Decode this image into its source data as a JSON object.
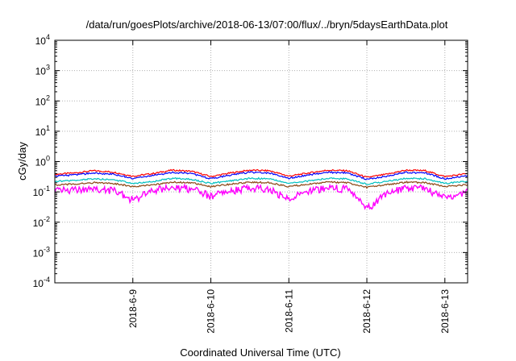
{
  "chart_data": {
    "type": "line",
    "title": "/data/run/goesPlots/archive/2018-06-13/07:00/flux/../bryn/5daysEarthData.plot",
    "xlabel": "Coordinated Universal Time (UTC)",
    "ylabel": "cGy/day",
    "yscale": "log",
    "ylim": [
      0.0001,
      10000
    ],
    "y_ticks": [
      {
        "base": "10",
        "exp": "-4",
        "value": 0.0001
      },
      {
        "base": "10",
        "exp": "-3",
        "value": 0.001
      },
      {
        "base": "10",
        "exp": "-2",
        "value": 0.01
      },
      {
        "base": "10",
        "exp": "-1",
        "value": 0.1
      },
      {
        "base": "10",
        "exp": "0",
        "value": 1
      },
      {
        "base": "10",
        "exp": "1",
        "value": 10
      },
      {
        "base": "10",
        "exp": "2",
        "value": 100
      },
      {
        "base": "10",
        "exp": "3",
        "value": 1000
      },
      {
        "base": "10",
        "exp": "4",
        "value": 10000
      }
    ],
    "xlim": [
      "2018-06-08 00:00",
      "2018-06-13 07:00"
    ],
    "x_ticks": [
      {
        "label": "2018-6-9",
        "date": "2018-06-09"
      },
      {
        "label": "2018-6-10",
        "date": "2018-06-10"
      },
      {
        "label": "2018-6-11",
        "date": "2018-06-11"
      },
      {
        "label": "2018-6-12",
        "date": "2018-06-12"
      },
      {
        "label": "2018-6-13",
        "date": "2018-06-13"
      }
    ],
    "grid": true,
    "x": [
      "2018-06-08 00:00",
      "2018-06-08 06:00",
      "2018-06-08 12:00",
      "2018-06-08 18:00",
      "2018-06-09 00:00",
      "2018-06-09 06:00",
      "2018-06-09 12:00",
      "2018-06-09 18:00",
      "2018-06-10 00:00",
      "2018-06-10 06:00",
      "2018-06-10 12:00",
      "2018-06-10 18:00",
      "2018-06-11 00:00",
      "2018-06-11 06:00",
      "2018-06-11 12:00",
      "2018-06-11 18:00",
      "2018-06-12 00:00",
      "2018-06-12 06:00",
      "2018-06-12 12:00",
      "2018-06-12 18:00",
      "2018-06-13 00:00",
      "2018-06-13 07:00"
    ],
    "series": [
      {
        "color": "#ff0000",
        "values": [
          0.38,
          0.42,
          0.5,
          0.45,
          0.33,
          0.4,
          0.52,
          0.48,
          0.32,
          0.42,
          0.52,
          0.5,
          0.33,
          0.42,
          0.52,
          0.5,
          0.3,
          0.38,
          0.52,
          0.5,
          0.32,
          0.4
        ]
      },
      {
        "color": "#0000ff",
        "values": [
          0.33,
          0.36,
          0.42,
          0.38,
          0.28,
          0.34,
          0.44,
          0.4,
          0.27,
          0.36,
          0.44,
          0.42,
          0.28,
          0.36,
          0.44,
          0.42,
          0.26,
          0.33,
          0.44,
          0.42,
          0.27,
          0.34
        ]
      },
      {
        "color": "#00c0c0",
        "values": [
          0.22,
          0.24,
          0.27,
          0.25,
          0.19,
          0.22,
          0.28,
          0.26,
          0.19,
          0.23,
          0.28,
          0.27,
          0.19,
          0.23,
          0.28,
          0.27,
          0.18,
          0.22,
          0.28,
          0.27,
          0.19,
          0.22
        ]
      },
      {
        "color": "#8b4513",
        "values": [
          0.17,
          0.18,
          0.2,
          0.19,
          0.15,
          0.17,
          0.21,
          0.2,
          0.15,
          0.18,
          0.21,
          0.2,
          0.15,
          0.18,
          0.21,
          0.2,
          0.14,
          0.17,
          0.21,
          0.2,
          0.15,
          0.17
        ]
      },
      {
        "color": "#ff00ff",
        "values": [
          0.12,
          0.13,
          0.15,
          0.12,
          0.06,
          0.12,
          0.15,
          0.14,
          0.08,
          0.12,
          0.15,
          0.14,
          0.06,
          0.12,
          0.15,
          0.14,
          0.03,
          0.1,
          0.15,
          0.14,
          0.07,
          0.12
        ]
      }
    ]
  }
}
